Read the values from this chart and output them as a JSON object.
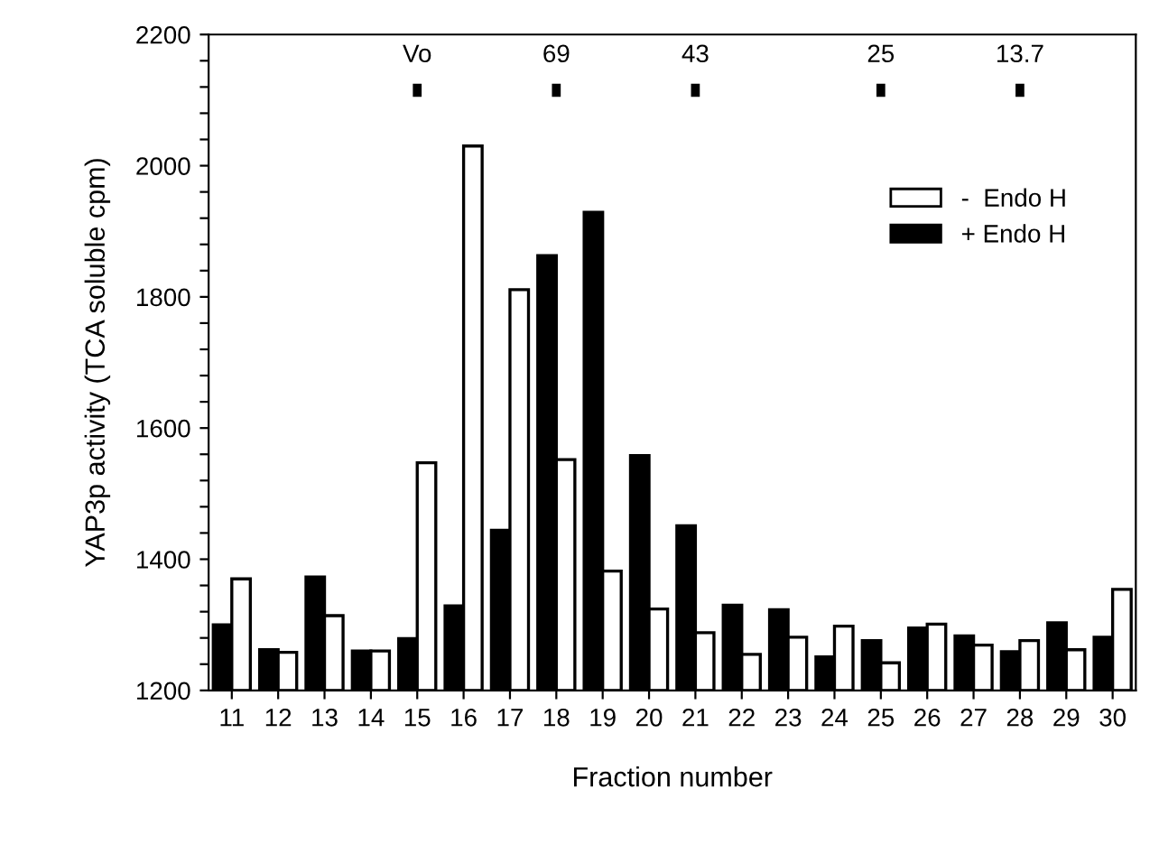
{
  "chart_data": {
    "type": "bar",
    "xlabel": "Fraction number",
    "ylabel": "YAP3p activity (TCA soluble cpm)",
    "categories": [
      "11",
      "12",
      "13",
      "14",
      "15",
      "16",
      "17",
      "18",
      "19",
      "20",
      "21",
      "22",
      "23",
      "24",
      "25",
      "26",
      "27",
      "28",
      "29",
      "30"
    ],
    "series": [
      {
        "name": "+ Endo H",
        "color": "#000000",
        "values": [
          1300,
          1262,
          1373,
          1260,
          1279,
          1329,
          1444,
          1863,
          1929,
          1558,
          1451,
          1330,
          1323,
          1251,
          1276,
          1295,
          1283,
          1259,
          1303,
          1281
        ]
      },
      {
        "name": "-  Endo H",
        "color": "#ffffff",
        "values": [
          1370,
          1258,
          1314,
          1260,
          1547,
          2030,
          1811,
          1552,
          1382,
          1324,
          1288,
          1255,
          1281,
          1298,
          1242,
          1301,
          1269,
          1276,
          1262,
          1354
        ]
      }
    ],
    "ylim": [
      1200,
      2200
    ],
    "yticks": [
      1200,
      {
        "value": 1240,
        "label": null
      },
      {
        "value": 1280,
        "label": null
      },
      {
        "value": 1320,
        "label": null
      },
      {
        "value": 1360,
        "label": null
      },
      1400,
      {
        "value": 1440,
        "label": null
      },
      {
        "value": 1480,
        "label": null
      },
      {
        "value": 1520,
        "label": null
      },
      {
        "value": 1560,
        "label": null
      },
      1600,
      {
        "value": 1640,
        "label": null
      },
      {
        "value": 1680,
        "label": null
      },
      {
        "value": 1720,
        "label": null
      },
      {
        "value": 1760,
        "label": null
      },
      1800,
      {
        "value": 1840,
        "label": null
      },
      {
        "value": 1880,
        "label": null
      },
      {
        "value": 1920,
        "label": null
      },
      {
        "value": 1960,
        "label": null
      },
      2000,
      {
        "value": 2040,
        "label": null
      },
      {
        "value": 2080,
        "label": null
      },
      {
        "value": 2120,
        "label": null
      },
      {
        "value": 2160,
        "label": null
      },
      2200
    ],
    "ref_lines": [
      {
        "axis": "x",
        "value": "15",
        "label": "Vo"
      },
      {
        "axis": "x",
        "value": "18",
        "label": "69"
      },
      {
        "axis": "x",
        "value": "21",
        "label": "43"
      },
      {
        "axis": "x",
        "value": "25",
        "label": "25"
      },
      {
        "axis": "x",
        "value": "28",
        "label": "13.7"
      }
    ],
    "legend": "top right",
    "grid": false
  }
}
